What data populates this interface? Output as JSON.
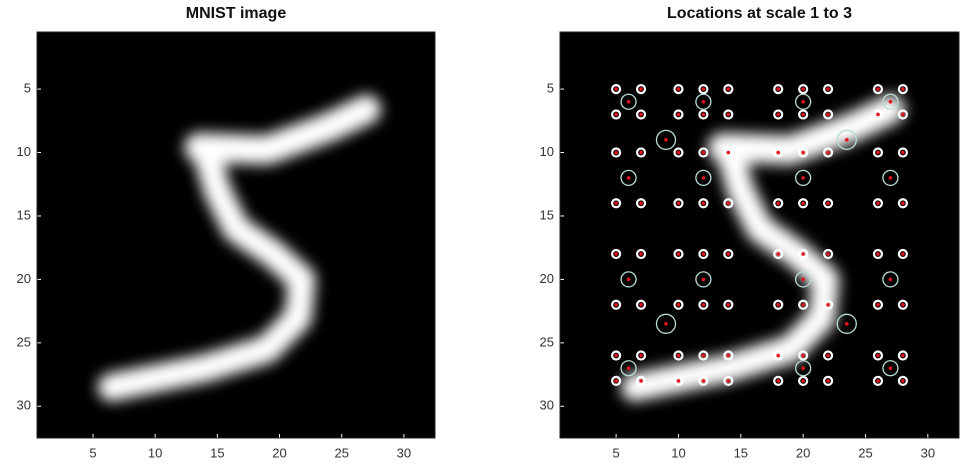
{
  "chart_data": [
    {
      "type": "image",
      "title": "MNIST image",
      "xlim": [
        0.5,
        32.5
      ],
      "ylim": [
        0.5,
        32.5
      ],
      "xticks": [
        5,
        10,
        15,
        20,
        25,
        30
      ],
      "yticks": [
        5,
        10,
        15,
        20,
        25,
        30
      ]
    },
    {
      "type": "scatter",
      "title": "Locations at scale 1 to 3",
      "xlim": [
        0.5,
        32.5
      ],
      "ylim": [
        0.5,
        32.5
      ],
      "xticks": [
        5,
        10,
        15,
        20,
        25,
        30
      ],
      "yticks": [
        5,
        10,
        15,
        20,
        25,
        30
      ],
      "series": [
        {
          "color": "#ffffff",
          "x": [
            5,
            7,
            10,
            12,
            14,
            18,
            20,
            22,
            26,
            28,
            5,
            7,
            10,
            12,
            14,
            18,
            20,
            22,
            26,
            28,
            5,
            7,
            10,
            12,
            14,
            18,
            20,
            22,
            26,
            28,
            5,
            7,
            10,
            12,
            14,
            18,
            20,
            22,
            26,
            28,
            5,
            7,
            10,
            12,
            14,
            18,
            20,
            22,
            26,
            28,
            5,
            7,
            10,
            12,
            14,
            18,
            20,
            22,
            26,
            28,
            5,
            7,
            10,
            12,
            14,
            18,
            20,
            22,
            26,
            28,
            5,
            7,
            10,
            12,
            14,
            18,
            20,
            22,
            26,
            28
          ],
          "y": [
            5,
            5,
            5,
            5,
            5,
            5,
            5,
            5,
            5,
            5,
            7,
            7,
            7,
            7,
            7,
            7,
            7,
            7,
            7,
            7,
            10,
            10,
            10,
            10,
            10,
            10,
            10,
            10,
            10,
            10,
            14,
            14,
            14,
            14,
            14,
            14,
            14,
            14,
            14,
            14,
            18,
            18,
            18,
            18,
            18,
            18,
            18,
            18,
            18,
            18,
            22,
            22,
            22,
            22,
            22,
            22,
            22,
            22,
            22,
            22,
            26,
            26,
            26,
            26,
            26,
            26,
            26,
            26,
            26,
            26,
            28,
            28,
            28,
            28,
            28,
            28,
            28,
            28,
            28,
            28
          ]
        },
        {
          "color": "#b8dcd8",
          "x": [
            6,
            12,
            20,
            27,
            6,
            12,
            20,
            27,
            6,
            12,
            20,
            27,
            6,
            20,
            27
          ],
          "y": [
            6,
            6,
            6,
            6,
            12,
            12,
            12,
            12,
            20,
            20,
            20,
            20,
            27,
            27,
            27
          ]
        },
        {
          "color": "#b8dcd8",
          "x": [
            9,
            23.5,
            9,
            23.5
          ],
          "y": [
            9,
            9,
            23.5,
            23.5
          ]
        }
      ]
    }
  ]
}
